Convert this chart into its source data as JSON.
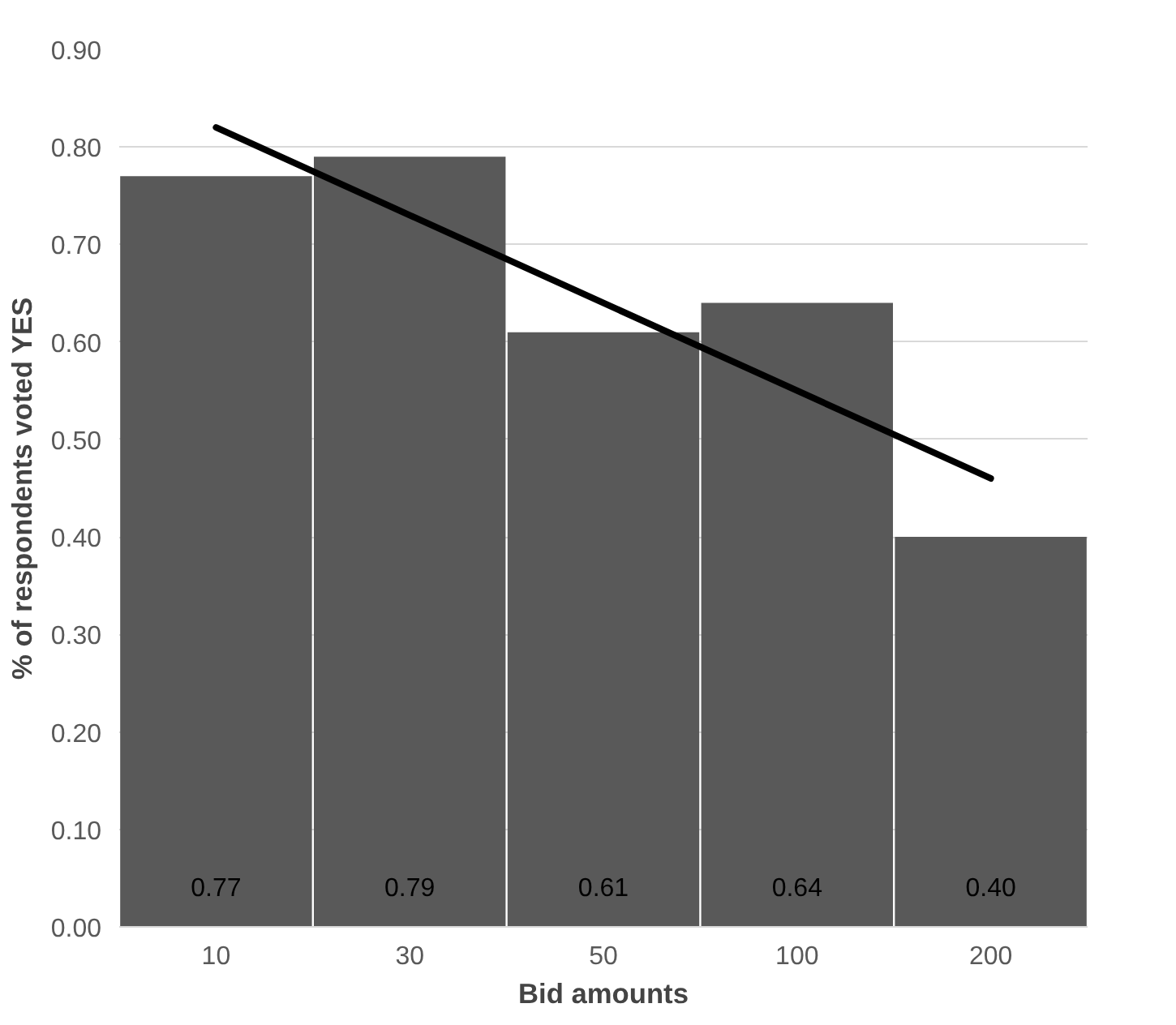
{
  "chart_data": {
    "type": "bar",
    "xlabel": "Bid amounts",
    "ylabel": "% of respondents voted YES",
    "categories": [
      "10",
      "30",
      "50",
      "100",
      "200"
    ],
    "series": [
      {
        "color": "#595959",
        "values": [
          0.77,
          0.79,
          0.61,
          0.64,
          0.4
        ],
        "value_labels": [
          "0.77",
          "0.79",
          "0.61",
          "0.64",
          "0.40"
        ]
      },
      {
        "type": "line",
        "color": "#000000",
        "x": [
          "10",
          "200"
        ],
        "values": [
          0.82,
          0.46
        ]
      }
    ],
    "grid": "y",
    "ylim": [
      0,
      0.9
    ],
    "yticks": [
      {
        "value": 0,
        "label": "0.00"
      },
      {
        "value": 0.1,
        "label": "0.10"
      },
      {
        "value": 0.2,
        "label": "0.20"
      },
      {
        "value": 0.3,
        "label": "0.30"
      },
      {
        "value": 0.4,
        "label": "0.40"
      },
      {
        "value": 0.5,
        "label": "0.50"
      },
      {
        "value": 0.6,
        "label": "0.60"
      },
      {
        "value": 0.7,
        "label": "0.70"
      },
      {
        "value": 0.8,
        "label": "0.80"
      },
      {
        "value": 0.9,
        "label": "0.90"
      }
    ]
  }
}
